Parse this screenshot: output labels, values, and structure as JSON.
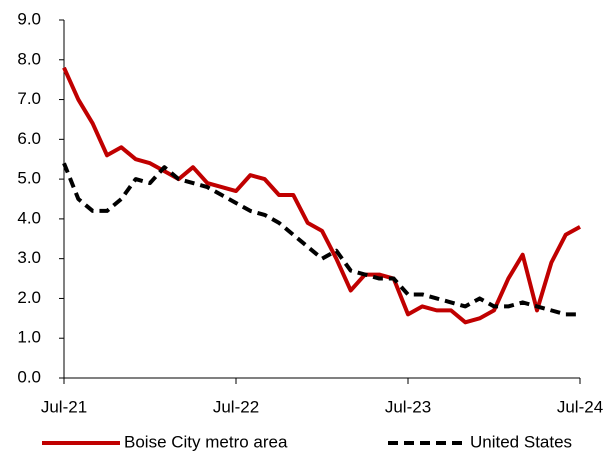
{
  "chart_data": {
    "type": "line",
    "categories": [
      "Jul-21",
      null,
      null,
      null,
      null,
      null,
      null,
      null,
      null,
      null,
      null,
      null,
      "Jul-22",
      null,
      null,
      null,
      null,
      null,
      null,
      null,
      null,
      null,
      null,
      null,
      "Jul-23",
      null,
      null,
      null,
      null,
      null,
      null,
      null,
      null,
      null,
      null,
      null,
      "Jul-24"
    ],
    "series": [
      {
        "name": "Boise City metro area",
        "color": "#c00000",
        "dash": false,
        "values": [
          7.8,
          7.0,
          6.4,
          5.6,
          5.8,
          5.5,
          5.4,
          5.2,
          5.0,
          5.3,
          4.9,
          4.8,
          4.7,
          5.1,
          5.0,
          4.6,
          4.6,
          3.9,
          3.7,
          3.0,
          2.2,
          2.6,
          2.6,
          2.5,
          1.6,
          1.8,
          1.7,
          1.7,
          1.4,
          1.5,
          1.7,
          2.5,
          3.1,
          1.7,
          2.9,
          3.6,
          3.8
        ]
      },
      {
        "name": "United States",
        "color": "#000000",
        "dash": true,
        "values": [
          5.4,
          4.5,
          4.2,
          4.2,
          4.5,
          5.0,
          4.9,
          5.3,
          5.0,
          4.9,
          4.8,
          4.6,
          4.4,
          4.2,
          4.1,
          3.9,
          3.6,
          3.3,
          3.0,
          3.2,
          2.7,
          2.6,
          2.5,
          2.5,
          2.1,
          2.1,
          2.0,
          1.9,
          1.8,
          2.0,
          1.8,
          1.8,
          1.9,
          1.8,
          1.7,
          1.6,
          1.6
        ]
      }
    ],
    "ylim": [
      0,
      9
    ],
    "yticks": [
      {
        "value": 0,
        "label": "0.0"
      },
      {
        "value": 1,
        "label": "1.0"
      },
      {
        "value": 2,
        "label": "2.0"
      },
      {
        "value": 3,
        "label": "3.0"
      },
      {
        "value": 4,
        "label": "4.0"
      },
      {
        "value": 5,
        "label": "5.0"
      },
      {
        "value": 6,
        "label": "6.0"
      },
      {
        "value": 7,
        "label": "7.0"
      },
      {
        "value": 8,
        "label": "8.0"
      },
      {
        "value": 9,
        "label": "9.0"
      }
    ],
    "grid": false,
    "legend": "bottom"
  }
}
